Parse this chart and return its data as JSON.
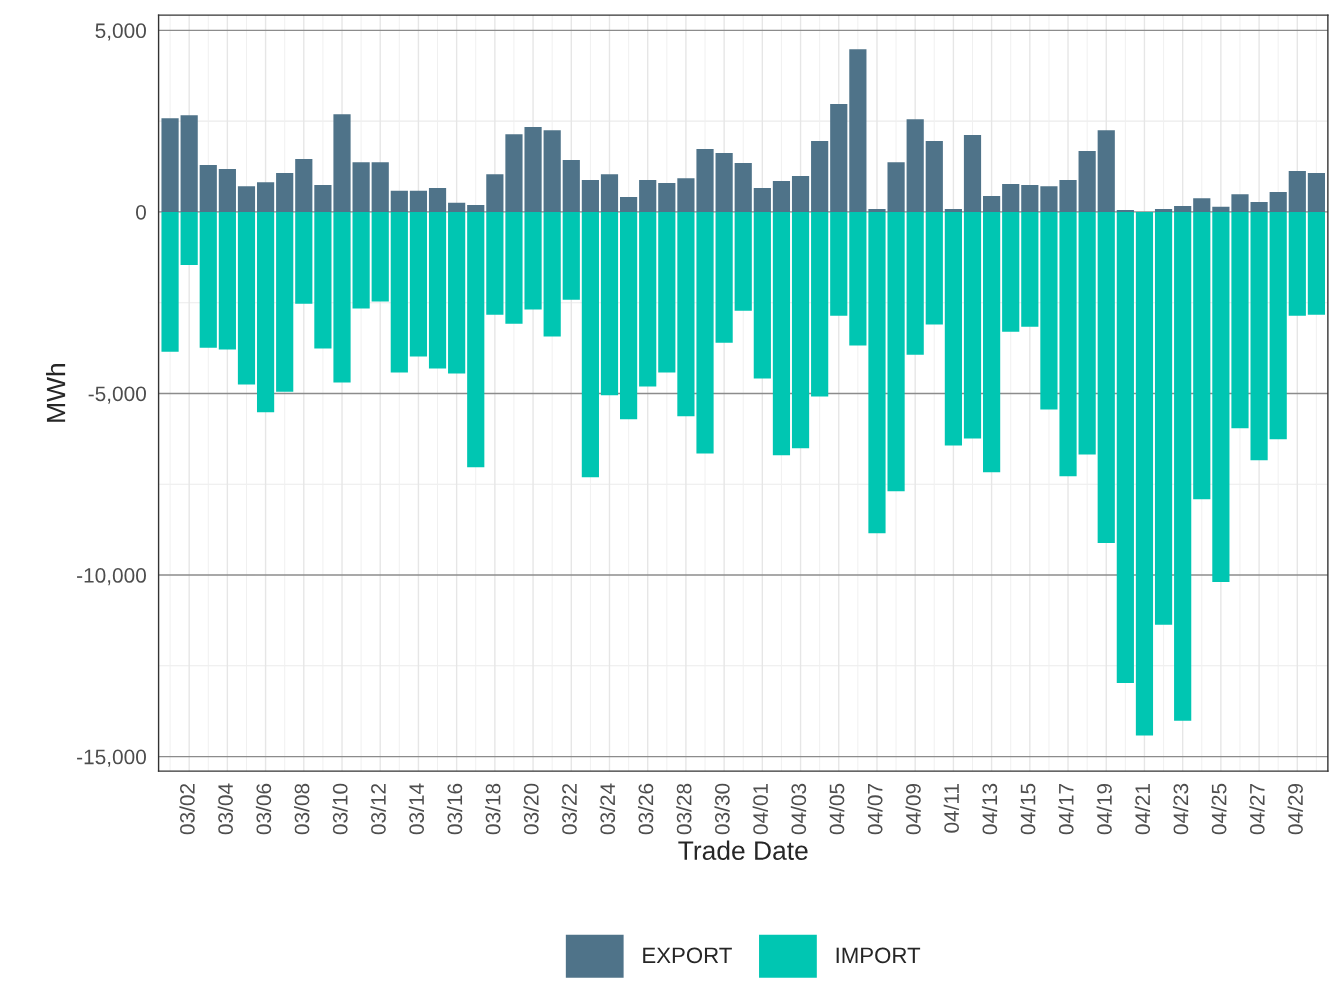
{
  "chart_data": {
    "type": "bar",
    "xlabel": "Trade Date",
    "ylabel": "MWh",
    "categories": [
      null,
      "03/02",
      null,
      "03/04",
      null,
      "03/06",
      null,
      "03/08",
      null,
      "03/10",
      null,
      "03/12",
      null,
      "03/14",
      null,
      "03/16",
      null,
      "03/18",
      null,
      "03/20",
      null,
      "03/22",
      null,
      "03/24",
      null,
      "03/26",
      null,
      "03/28",
      null,
      "03/30",
      null,
      "04/01",
      null,
      "04/03",
      null,
      "04/05",
      null,
      "04/07",
      null,
      "04/09",
      null,
      "04/11",
      null,
      "04/13",
      null,
      "04/15",
      null,
      "04/17",
      null,
      "04/19",
      null,
      "04/21",
      null,
      "04/23",
      null,
      "04/25",
      null,
      "04/27",
      null,
      "04/29",
      null
    ],
    "series": [
      {
        "name": "EXPORT",
        "color": "#4f7389",
        "values": [
          2580,
          2660,
          1290,
          1180,
          710,
          820,
          1070,
          1460,
          740,
          2690,
          1370,
          1370,
          580,
          580,
          660,
          250,
          190,
          1040,
          2140,
          2340,
          2250,
          1430,
          880,
          1040,
          410,
          880,
          800,
          930,
          1730,
          1620,
          1350,
          660,
          850,
          990,
          1950,
          2970,
          4480,
          80,
          1370,
          2550,
          1950,
          80,
          2120,
          440,
          770,
          740,
          710,
          880,
          1680,
          2250,
          50,
          0,
          80,
          160,
          380,
          140,
          490,
          270,
          550,
          1130,
          1070
        ]
      },
      {
        "name": "IMPORT",
        "color": "#00c6b2",
        "values": [
          -3850,
          -1460,
          -3740,
          -3790,
          -4750,
          -5520,
          -4950,
          -2530,
          -3760,
          -4700,
          -2660,
          -2470,
          -4420,
          -3980,
          -4310,
          -4450,
          -7030,
          -2830,
          -3080,
          -2690,
          -3430,
          -2420,
          -7310,
          -5050,
          -5710,
          -4810,
          -4420,
          -5630,
          -6650,
          -3600,
          -2720,
          -4590,
          -6700,
          -6510,
          -5080,
          -2860,
          -3680,
          -8850,
          -7690,
          -3930,
          -3100,
          -6430,
          -6240,
          -7170,
          -3300,
          -3160,
          -5440,
          -7280,
          -6680,
          -9120,
          -12970,
          -14420,
          -11370,
          -14010,
          -7910,
          -10190,
          -5960,
          -6840,
          -6260,
          -2860,
          -2830
        ]
      }
    ],
    "ylim": [
      -15400,
      5420
    ],
    "yticks": [
      {
        "value": 5000,
        "label": "5,000"
      },
      0,
      {
        "value": -5000,
        "label": "-5,000"
      },
      {
        "value": -10000,
        "label": "-10,000"
      },
      {
        "value": -15000,
        "label": "-15,000"
      }
    ],
    "grid": true,
    "legend": "bottom",
    "stacked": true
  }
}
